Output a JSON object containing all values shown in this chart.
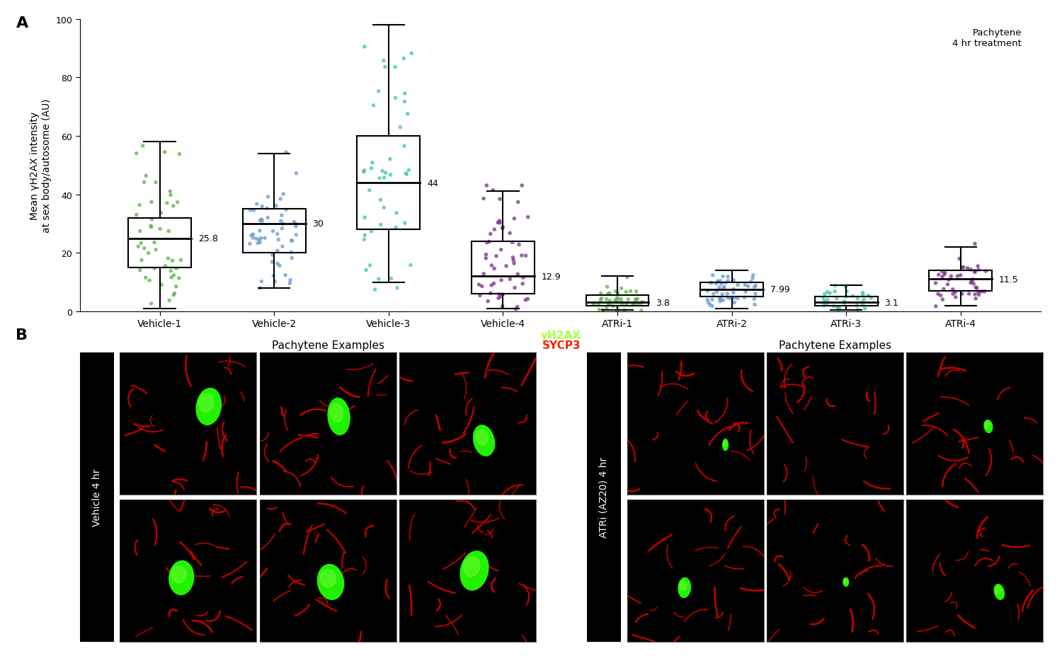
{
  "panel_a": {
    "ylabel": "Mean γH2AX intensity\nat sex body/autosome (AU)",
    "ylim": [
      0,
      100
    ],
    "yticks": [
      0,
      20,
      40,
      60,
      80,
      100
    ],
    "annotation_text": "Pachytene\n4 hr treatment",
    "groups": [
      {
        "label": "Vehicle-1",
        "median": 25.0,
        "q1": 15.0,
        "q3": 32.0,
        "whisker_low": 1.0,
        "whisker_high": 58.0,
        "mean_label": "25.8",
        "dot_color": "#5ab546",
        "n_dots": 48
      },
      {
        "label": "Vehicle-2",
        "median": 30.0,
        "q1": 20.0,
        "q3": 35.0,
        "whisker_low": 8.0,
        "whisker_high": 54.0,
        "mean_label": "30",
        "dot_color": "#6699cc",
        "n_dots": 55
      },
      {
        "label": "Vehicle-3",
        "median": 44.0,
        "q1": 28.0,
        "q3": 60.0,
        "whisker_low": 10.0,
        "whisker_high": 98.0,
        "mean_label": "44",
        "dot_color": "#44c4aa",
        "n_dots": 45
      },
      {
        "label": "Vehicle-4",
        "median": 12.0,
        "q1": 6.0,
        "q3": 24.0,
        "whisker_low": 1.0,
        "whisker_high": 41.0,
        "mean_label": "12.9",
        "dot_color": "#7b2d8b",
        "n_dots": 55
      },
      {
        "label": "ATRi-1",
        "median": 3.0,
        "q1": 2.0,
        "q3": 5.5,
        "whisker_low": 0.5,
        "whisker_high": 12.0,
        "mean_label": "3.8",
        "dot_color": "#5ab546",
        "n_dots": 45
      },
      {
        "label": "ATRi-2",
        "median": 7.5,
        "q1": 5.0,
        "q3": 10.0,
        "whisker_low": 1.0,
        "whisker_high": 14.0,
        "mean_label": "7.99",
        "dot_color": "#6699cc",
        "n_dots": 50
      },
      {
        "label": "ATRi-3",
        "median": 3.0,
        "q1": 2.0,
        "q3": 5.0,
        "whisker_low": 0.5,
        "whisker_high": 9.0,
        "mean_label": "3.1",
        "dot_color": "#44c4aa",
        "n_dots": 35
      },
      {
        "label": "ATRi-4",
        "median": 11.0,
        "q1": 7.0,
        "q3": 14.0,
        "whisker_low": 2.0,
        "whisker_high": 22.0,
        "mean_label": "11.5",
        "dot_color": "#7b2d8b",
        "n_dots": 45
      }
    ]
  },
  "panel_b": {
    "left_title": "Pachytene Examples",
    "right_title": "Pachytene Examples",
    "legend_yh2ax": "yH2AX",
    "legend_sycp3": "SYCP3",
    "legend_yh2ax_color": "#aaff44",
    "legend_sycp3_color": "#ff2200",
    "left_row_label": "Vehicle 4 hr",
    "right_row_label": "ATRi (AZ20) 4 hr"
  },
  "figure_label_a": "A",
  "figure_label_b": "B",
  "background_color": "#ffffff"
}
